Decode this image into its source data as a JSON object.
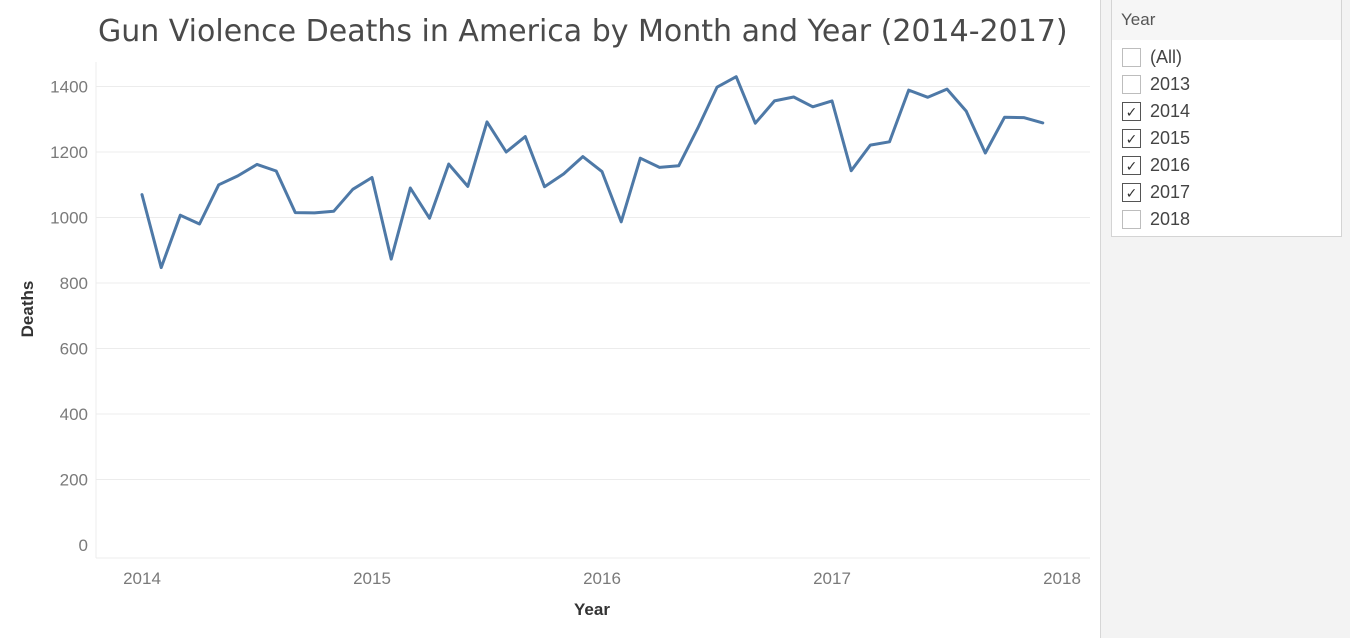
{
  "colors": {
    "line": "#4e79a7",
    "gridline": "#ececec",
    "axis_text": "#7a7a7a",
    "panel_bg": "#f3f3f3"
  },
  "chart_data": {
    "type": "line",
    "title": "Gun Violence Deaths in America by Month and Year (2014-2017)",
    "xlabel": "Year",
    "ylabel": "Deaths",
    "x_tick_labels": [
      "2014",
      "2015",
      "2016",
      "2017",
      "2018"
    ],
    "y_tick_labels": [
      "0",
      "200",
      "400",
      "600",
      "800",
      "1000",
      "1200",
      "1400"
    ],
    "ylim": [
      0,
      1500
    ],
    "xlim": [
      "2014-01",
      "2018-01"
    ],
    "grid": true,
    "series": [
      {
        "x": [
          "2014-01",
          "2014-02",
          "2014-03",
          "2014-04",
          "2014-05",
          "2014-06",
          "2014-07",
          "2014-08",
          "2014-09",
          "2014-10",
          "2014-11",
          "2014-12",
          "2015-01",
          "2015-02",
          "2015-03",
          "2015-04",
          "2015-05",
          "2015-06",
          "2015-07",
          "2015-08",
          "2015-09",
          "2015-10",
          "2015-11",
          "2015-12",
          "2016-01",
          "2016-02",
          "2016-03",
          "2016-04",
          "2016-05",
          "2016-06",
          "2016-07",
          "2016-08",
          "2016-09",
          "2016-10",
          "2016-11",
          "2016-12",
          "2017-01",
          "2017-02",
          "2017-03",
          "2017-04",
          "2017-05",
          "2017-06",
          "2017-07",
          "2017-08",
          "2017-09",
          "2017-10",
          "2017-11",
          "2017-12"
        ],
        "values": [
          1070,
          847,
          1007,
          980,
          1100,
          1127,
          1162,
          1142,
          1015,
          1014,
          1019,
          1086,
          1122,
          873,
          1090,
          998,
          1163,
          1095,
          1292,
          1200,
          1247,
          1094,
          1133,
          1186,
          1140,
          987,
          1181,
          1153,
          1158,
          1273,
          1398,
          1430,
          1288,
          1356,
          1368,
          1338,
          1356,
          1143,
          1221,
          1231,
          1389,
          1367,
          1392,
          1325,
          1197,
          1306,
          1305,
          1289
        ]
      }
    ]
  },
  "filter": {
    "title": "Year",
    "items": [
      {
        "label": "(All)",
        "checked": false
      },
      {
        "label": "2013",
        "checked": false
      },
      {
        "label": "2014",
        "checked": true
      },
      {
        "label": "2015",
        "checked": true
      },
      {
        "label": "2016",
        "checked": true
      },
      {
        "label": "2017",
        "checked": true
      },
      {
        "label": "2018",
        "checked": false
      }
    ]
  }
}
